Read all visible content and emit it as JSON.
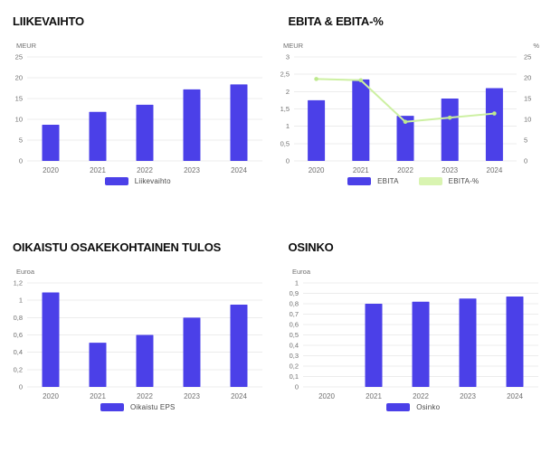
{
  "colors": {
    "bar": "#4B40E8",
    "line": "#CDF0A2",
    "line_marker": "#BDE98D",
    "legend_green": "#D9F4B1",
    "grid": "#ECECEC",
    "tick_text": "#6F6F6F",
    "legend_text": "#4A4A4A",
    "title_text": "#0D0D0D"
  },
  "chart_data": [
    {
      "type": "bar",
      "title": "LIIKEVAIHTO",
      "unit_left": "MEUR",
      "categories": [
        "2020",
        "2021",
        "2022",
        "2023",
        "2024"
      ],
      "y_left": {
        "min": 0,
        "max": 25,
        "step": 5,
        "tick_labels": [
          "25",
          "20",
          "15",
          "10",
          "5",
          "0"
        ]
      },
      "series": [
        {
          "name": "Liikevaihto",
          "type": "bar",
          "axis": "left",
          "values": [
            8.7,
            11.8,
            13.5,
            17.2,
            18.4
          ]
        }
      ],
      "legend": [
        {
          "label": "Liikevaihto",
          "color": "bar"
        }
      ],
      "grid_on": true,
      "legend_position": "bottom"
    },
    {
      "type": "bar+line",
      "title": "EBITA & EBITA-%",
      "unit_left": "MEUR",
      "unit_right": "%",
      "categories": [
        "2020",
        "2021",
        "2022",
        "2023",
        "2024"
      ],
      "y_left": {
        "min": 0,
        "max": 3,
        "step": 0.5,
        "tick_labels": [
          "3",
          "2,5",
          "2",
          "1,5",
          "1",
          "0,5",
          "0"
        ]
      },
      "y_right": {
        "min": 0,
        "max": 25,
        "step": 5,
        "tick_labels": [
          "25",
          "20",
          "15",
          "10",
          "5",
          "0"
        ]
      },
      "series": [
        {
          "name": "EBITA",
          "type": "bar",
          "axis": "left",
          "values": [
            1.75,
            2.35,
            1.3,
            1.8,
            2.1
          ]
        },
        {
          "name": "EBITA-%",
          "type": "line",
          "axis": "right",
          "values": [
            19.7,
            19.4,
            9.4,
            10.4,
            11.4
          ]
        }
      ],
      "legend": [
        {
          "label": "EBITA",
          "color": "bar"
        },
        {
          "label": "EBITA-%",
          "color": "legend_green"
        }
      ],
      "grid_on": true,
      "legend_position": "bottom"
    },
    {
      "type": "bar",
      "title": "OIKAISTU OSAKEKOHTAINEN TULOS",
      "unit_left": "Euroa",
      "categories": [
        "2020",
        "2021",
        "2022",
        "2023",
        "2024"
      ],
      "y_left": {
        "min": 0,
        "max": 1.2,
        "step": 0.2,
        "tick_labels": [
          "1,2",
          "1",
          "0,8",
          "0,6",
          "0,4",
          "0,2",
          "0"
        ]
      },
      "series": [
        {
          "name": "Oikaistu EPS",
          "type": "bar",
          "axis": "left",
          "values": [
            1.09,
            0.51,
            0.6,
            0.8,
            0.95
          ]
        }
      ],
      "legend": [
        {
          "label": "Oikaistu EPS",
          "color": "bar"
        }
      ],
      "grid_on": true,
      "legend_position": "bottom"
    },
    {
      "type": "bar",
      "title": "OSINKO",
      "unit_left": "Euroa",
      "categories": [
        "2020",
        "2021",
        "2022",
        "2023",
        "2024"
      ],
      "y_left": {
        "min": 0,
        "max": 1,
        "step": 0.1,
        "tick_labels": [
          "1",
          "0,9",
          "0,8",
          "0,7",
          "0,6",
          "0,5",
          "0,4",
          "0,3",
          "0,2",
          "0,1",
          "0"
        ]
      },
      "series": [
        {
          "name": "Osinko",
          "type": "bar",
          "axis": "left",
          "values": [
            null,
            0.8,
            0.82,
            0.85,
            0.87
          ]
        }
      ],
      "legend": [
        {
          "label": "Osinko",
          "color": "bar"
        }
      ],
      "grid_on": true,
      "legend_position": "bottom"
    }
  ]
}
